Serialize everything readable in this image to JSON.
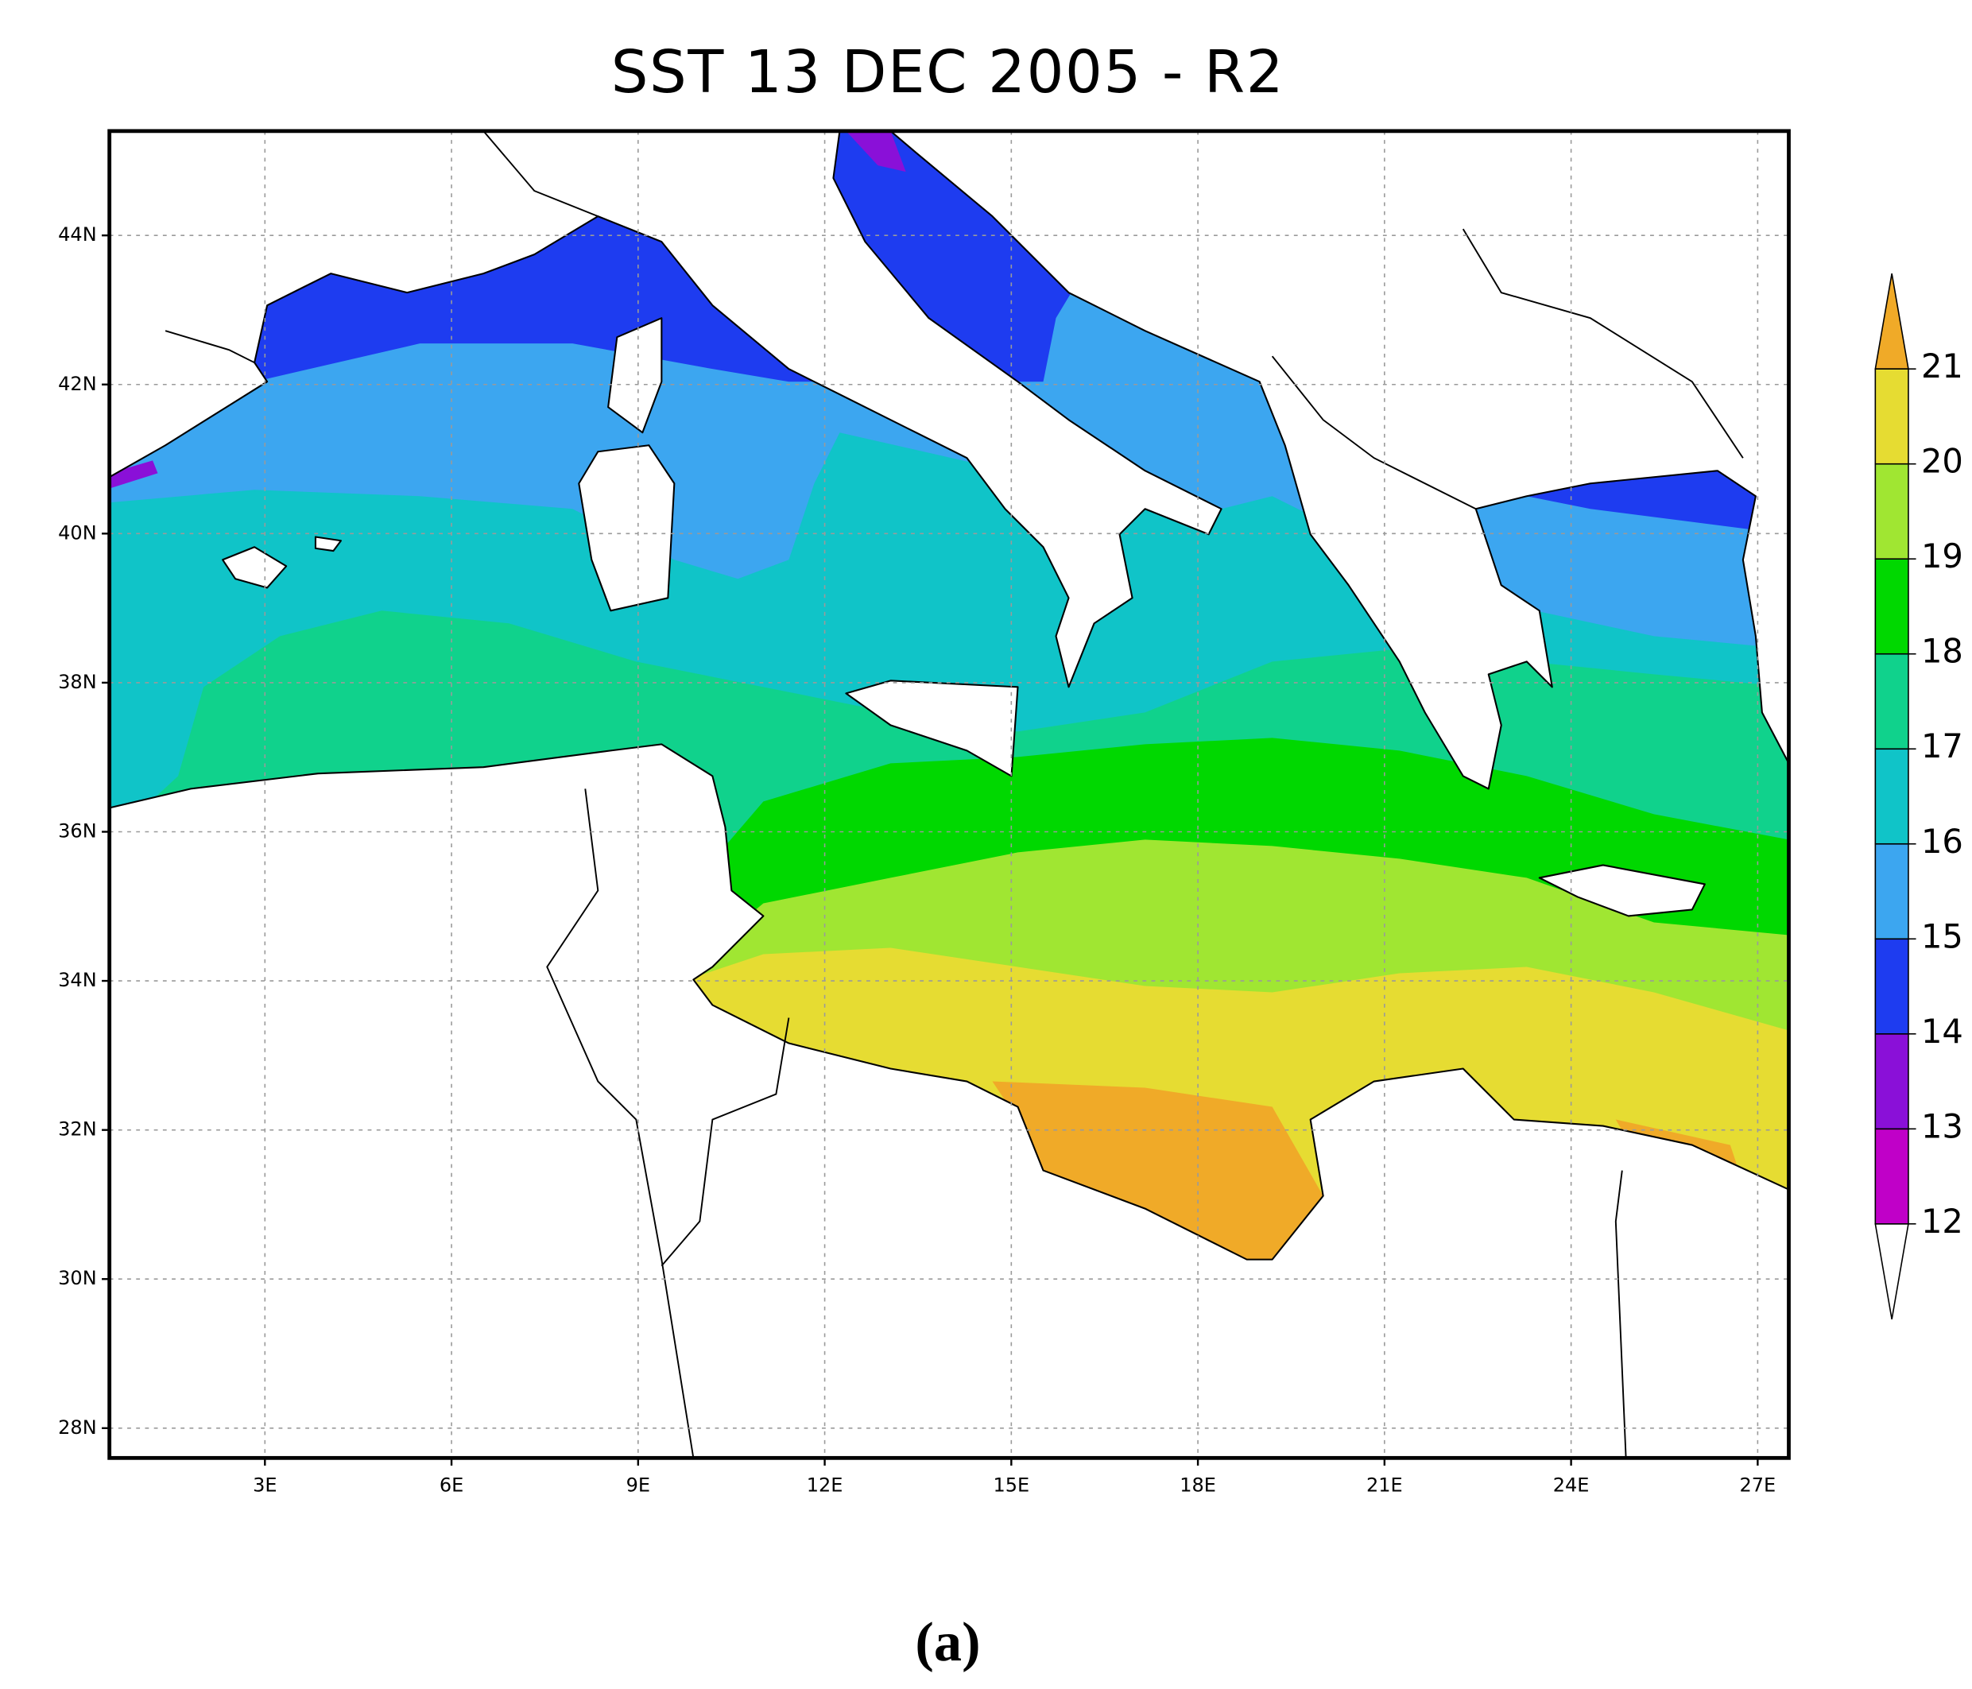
{
  "map": {
    "title": "SST 13 DEC 2005 - R2",
    "xlim": [
      0.5,
      27.5
    ],
    "ylim": [
      27.6,
      45.4
    ],
    "xticks": [
      {
        "value": 3,
        "label": "3E"
      },
      {
        "value": 6,
        "label": "6E"
      },
      {
        "value": 9,
        "label": "9E"
      },
      {
        "value": 12,
        "label": "12E"
      },
      {
        "value": 15,
        "label": "15E"
      },
      {
        "value": 18,
        "label": "18E"
      },
      {
        "value": 21,
        "label": "21E"
      },
      {
        "value": 24,
        "label": "24E"
      },
      {
        "value": 27,
        "label": "27E"
      }
    ],
    "yticks": [
      {
        "value": 28,
        "label": "28N"
      },
      {
        "value": 30,
        "label": "30N"
      },
      {
        "value": 32,
        "label": "32N"
      },
      {
        "value": 34,
        "label": "34N"
      },
      {
        "value": 36,
        "label": "36N"
      },
      {
        "value": 38,
        "label": "38N"
      },
      {
        "value": 40,
        "label": "40N"
      },
      {
        "value": 42,
        "label": "42N"
      },
      {
        "value": 44,
        "label": "44N"
      }
    ],
    "grid": true,
    "colorbar": {
      "levels": [
        12,
        13,
        14,
        15,
        16,
        17,
        18,
        19,
        20,
        21
      ],
      "colors": [
        "#ffffff",
        "#c000c8",
        "#8a10d8",
        "#1e3cf0",
        "#3ca6f0",
        "#10c4c8",
        "#10d28c",
        "#00d800",
        "#a0e632",
        "#e6dc32",
        "#f0aa28"
      ]
    },
    "caption": "(a)"
  }
}
